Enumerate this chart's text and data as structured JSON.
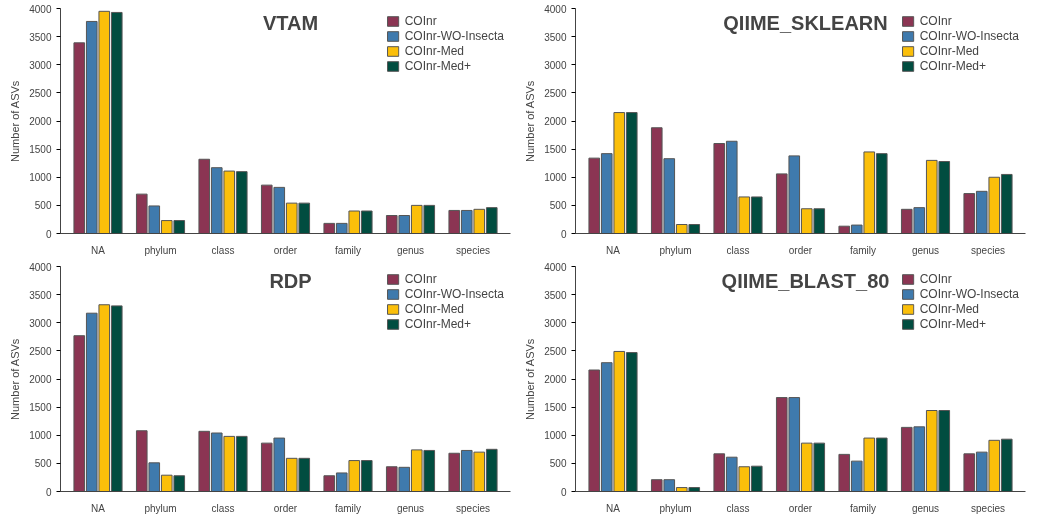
{
  "chart_data": [
    {
      "type": "bar",
      "title": "VTAM",
      "ylabel": "Number of ASVs",
      "categories": [
        "NA",
        "phylum",
        "class",
        "order",
        "family",
        "genus",
        "species"
      ],
      "ylim": [
        0,
        4000
      ],
      "yticks": [
        0,
        500,
        1000,
        1500,
        2000,
        2500,
        3000,
        3500,
        4000
      ],
      "grid": false,
      "legend": "top right",
      "series": [
        {
          "name": "COInr",
          "color": "#8b3553",
          "values": [
            3390,
            700,
            1320,
            860,
            180,
            320,
            410
          ]
        },
        {
          "name": "COInr-WO-Insecta",
          "color": "#3f7aad",
          "values": [
            3770,
            490,
            1170,
            820,
            180,
            320,
            410
          ]
        },
        {
          "name": "COInr-Med",
          "color": "#fbbf0a",
          "values": [
            3950,
            230,
            1110,
            540,
            400,
            500,
            430
          ]
        },
        {
          "name": "COInr-Med+",
          "color": "#014d40",
          "values": [
            3930,
            230,
            1100,
            540,
            400,
            500,
            460
          ]
        }
      ]
    },
    {
      "type": "bar",
      "title": "QIIME_SKLEARN",
      "ylabel": "Number of ASVs",
      "categories": [
        "NA",
        "phylum",
        "class",
        "order",
        "family",
        "genus",
        "species"
      ],
      "ylim": [
        0,
        4000
      ],
      "yticks": [
        0,
        500,
        1000,
        1500,
        2000,
        2500,
        3000,
        3500,
        4000
      ],
      "grid": false,
      "legend": "top right",
      "series": [
        {
          "name": "COInr",
          "color": "#8b3553",
          "values": [
            1340,
            1880,
            1600,
            1060,
            130,
            430,
            710
          ]
        },
        {
          "name": "COInr-WO-Insecta",
          "color": "#3f7aad",
          "values": [
            1420,
            1330,
            1640,
            1380,
            150,
            460,
            750
          ]
        },
        {
          "name": "COInr-Med",
          "color": "#fbbf0a",
          "values": [
            2150,
            160,
            650,
            440,
            1450,
            1300,
            1000
          ]
        },
        {
          "name": "COInr-Med+",
          "color": "#014d40",
          "values": [
            2150,
            160,
            650,
            440,
            1420,
            1280,
            1050
          ]
        }
      ]
    },
    {
      "type": "bar",
      "title": "RDP",
      "ylabel": "Number of ASVs",
      "categories": [
        "NA",
        "phylum",
        "class",
        "order",
        "family",
        "genus",
        "species"
      ],
      "ylim": [
        0,
        4000
      ],
      "yticks": [
        0,
        500,
        1000,
        1500,
        2000,
        2500,
        3000,
        3500,
        4000
      ],
      "grid": false,
      "legend": "top right",
      "series": [
        {
          "name": "COInr",
          "color": "#8b3553",
          "values": [
            2770,
            1080,
            1070,
            860,
            280,
            440,
            680
          ]
        },
        {
          "name": "COInr-WO-Insecta",
          "color": "#3f7aad",
          "values": [
            3170,
            510,
            1040,
            950,
            330,
            430,
            730
          ]
        },
        {
          "name": "COInr-Med",
          "color": "#fbbf0a",
          "values": [
            3320,
            290,
            980,
            590,
            550,
            740,
            700
          ]
        },
        {
          "name": "COInr-Med+",
          "color": "#014d40",
          "values": [
            3300,
            280,
            980,
            590,
            550,
            730,
            750
          ]
        }
      ]
    },
    {
      "type": "bar",
      "title": "QIIME_BLAST_80",
      "ylabel": "Number of ASVs",
      "categories": [
        "NA",
        "phylum",
        "class",
        "order",
        "family",
        "genus",
        "species"
      ],
      "ylim": [
        0,
        4000
      ],
      "yticks": [
        0,
        500,
        1000,
        1500,
        2000,
        2500,
        3000,
        3500,
        4000
      ],
      "grid": false,
      "legend": "top right",
      "series": [
        {
          "name": "COInr",
          "color": "#8b3553",
          "values": [
            2160,
            210,
            670,
            1670,
            660,
            1140,
            670
          ]
        },
        {
          "name": "COInr-WO-Insecta",
          "color": "#3f7aad",
          "values": [
            2290,
            210,
            610,
            1670,
            540,
            1150,
            700
          ]
        },
        {
          "name": "COInr-Med",
          "color": "#fbbf0a",
          "values": [
            2490,
            70,
            440,
            860,
            950,
            1440,
            910
          ]
        },
        {
          "name": "COInr-Med+",
          "color": "#014d40",
          "values": [
            2470,
            70,
            450,
            860,
            950,
            1440,
            930
          ]
        }
      ]
    }
  ]
}
